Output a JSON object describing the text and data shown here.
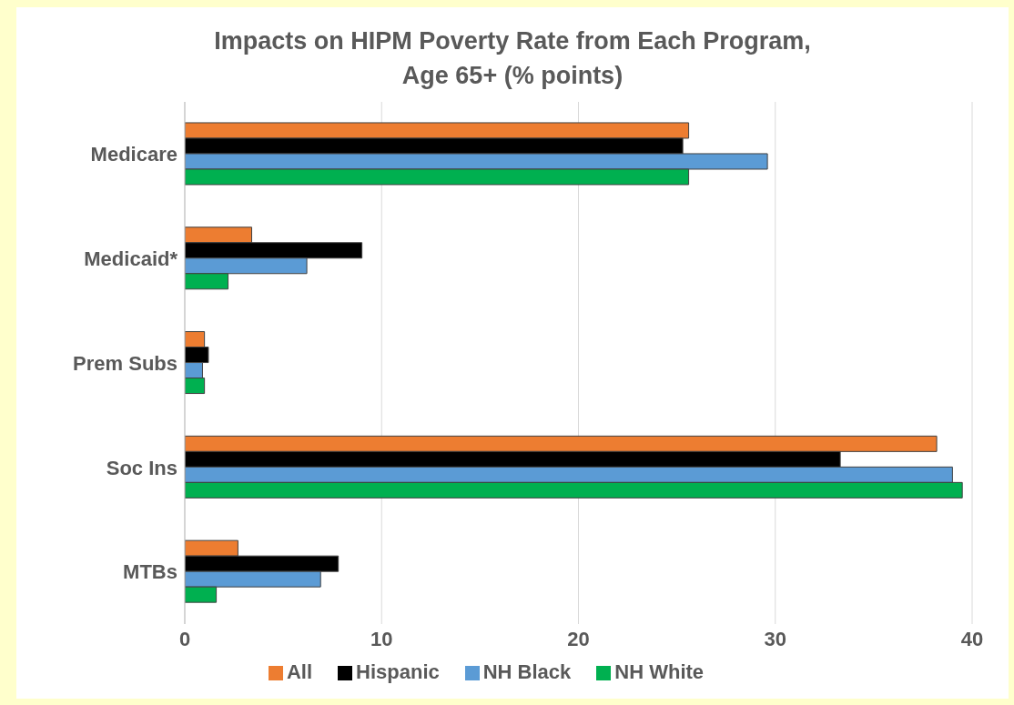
{
  "chart_data": {
    "type": "bar",
    "orientation": "horizontal",
    "title": "Impacts on HIPM Poverty Rate from Each Program,\nAge 65+ (% points)",
    "categories": [
      "Medicare",
      "Medicaid*",
      "Prem Subs",
      "Soc Ins",
      "MTBs"
    ],
    "series": [
      {
        "name": "All",
        "color": "#ed7d31",
        "values": [
          25.6,
          3.4,
          1.0,
          38.2,
          2.7
        ]
      },
      {
        "name": "Hispanic",
        "color": "#000000",
        "values": [
          25.3,
          9.0,
          1.2,
          33.3,
          7.8
        ]
      },
      {
        "name": "NH Black",
        "color": "#5b9bd5",
        "values": [
          29.6,
          6.2,
          0.9,
          39.0,
          6.9
        ]
      },
      {
        "name": "NH White",
        "color": "#00b050",
        "values": [
          25.6,
          2.2,
          1.0,
          39.5,
          1.6
        ]
      }
    ],
    "xlim": [
      0,
      40
    ],
    "xticks": [
      0,
      10,
      20,
      30,
      40
    ],
    "grid": "x",
    "legend": "bottom"
  }
}
